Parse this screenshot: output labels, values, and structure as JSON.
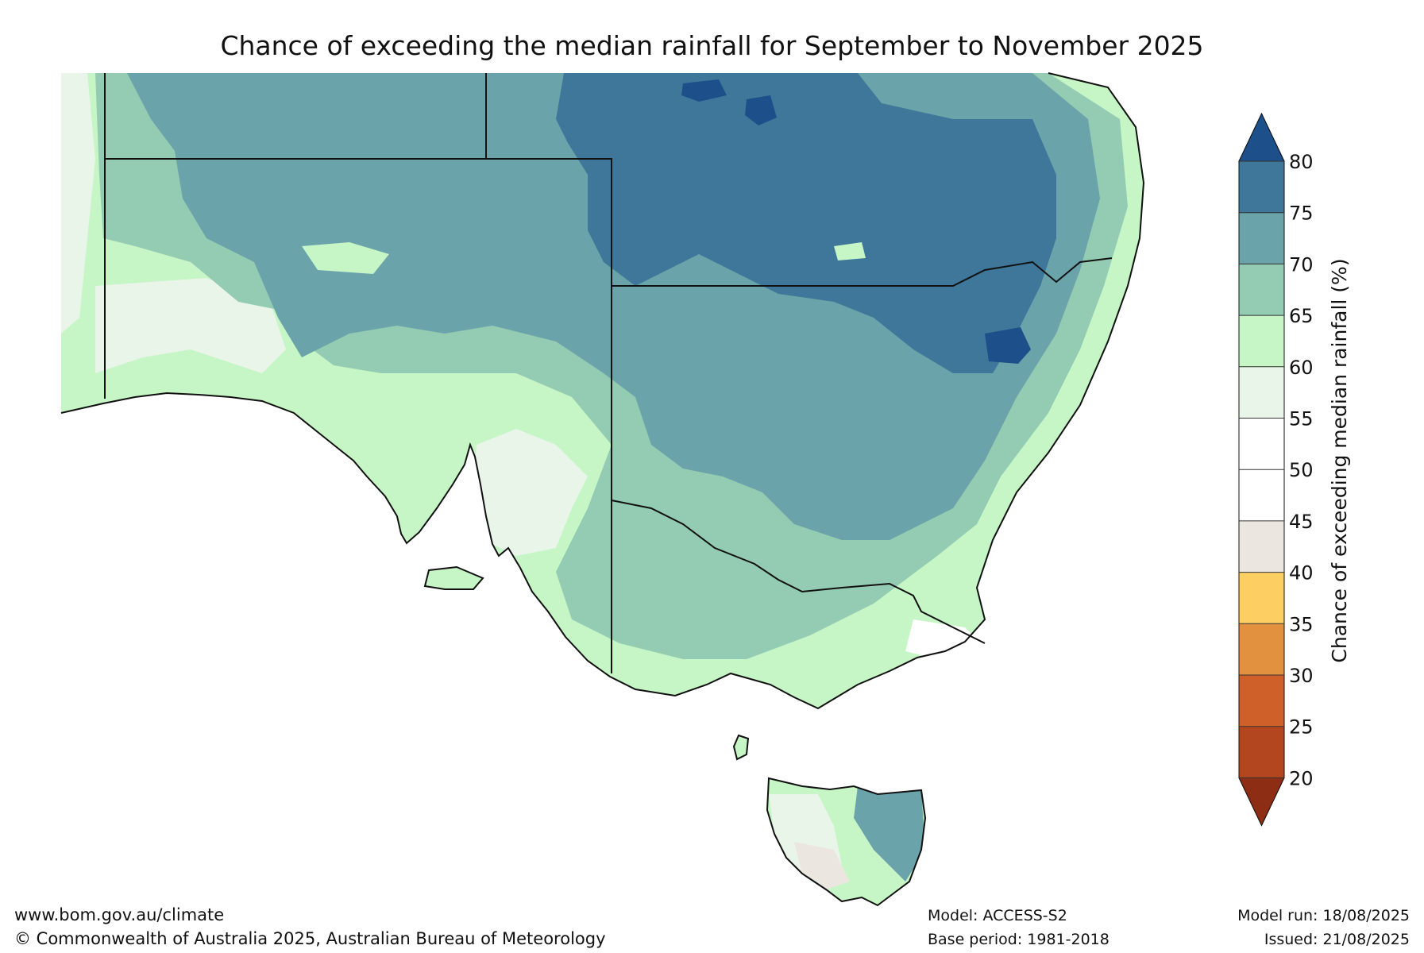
{
  "title": "Chance of exceeding the median rainfall for September to November 2025",
  "legend": {
    "label": "Chance of exceeding median rainfall (%)",
    "ticks": [
      "20",
      "25",
      "30",
      "35",
      "40",
      "45",
      "50",
      "55",
      "60",
      "65",
      "70",
      "75",
      "80"
    ],
    "bands": [
      {
        "range": "<20",
        "color": "#8c2d14"
      },
      {
        "range": "20-25",
        "color": "#b3461f"
      },
      {
        "range": "25-30",
        "color": "#d0602a"
      },
      {
        "range": "30-35",
        "color": "#e2913f"
      },
      {
        "range": "35-40",
        "color": "#fdce62"
      },
      {
        "range": "40-45",
        "color": "#ebe6e0"
      },
      {
        "range": "45-50",
        "color": "#ffffff"
      },
      {
        "range": "50-55",
        "color": "#ffffff"
      },
      {
        "range": "55-60",
        "color": "#eaf5ea"
      },
      {
        "range": "60-65",
        "color": "#c6f5c6"
      },
      {
        "range": "65-70",
        "color": "#94cbb3"
      },
      {
        "range": "70-75",
        "color": "#6aa3a9"
      },
      {
        "range": "75-80",
        "color": "#3e7799"
      },
      {
        "range": ">80",
        "color": "#1d4f8a"
      }
    ]
  },
  "footer": {
    "website": "www.bom.gov.au/climate",
    "copyright": "© Commonwealth of Australia 2025, Australian Bureau of Meteorology",
    "model": "Model: ACCESS-S2",
    "base_period": "Base period: 1981-2018",
    "model_run": "Model run: 18/08/2025",
    "issued": "Issued: 21/08/2025"
  }
}
